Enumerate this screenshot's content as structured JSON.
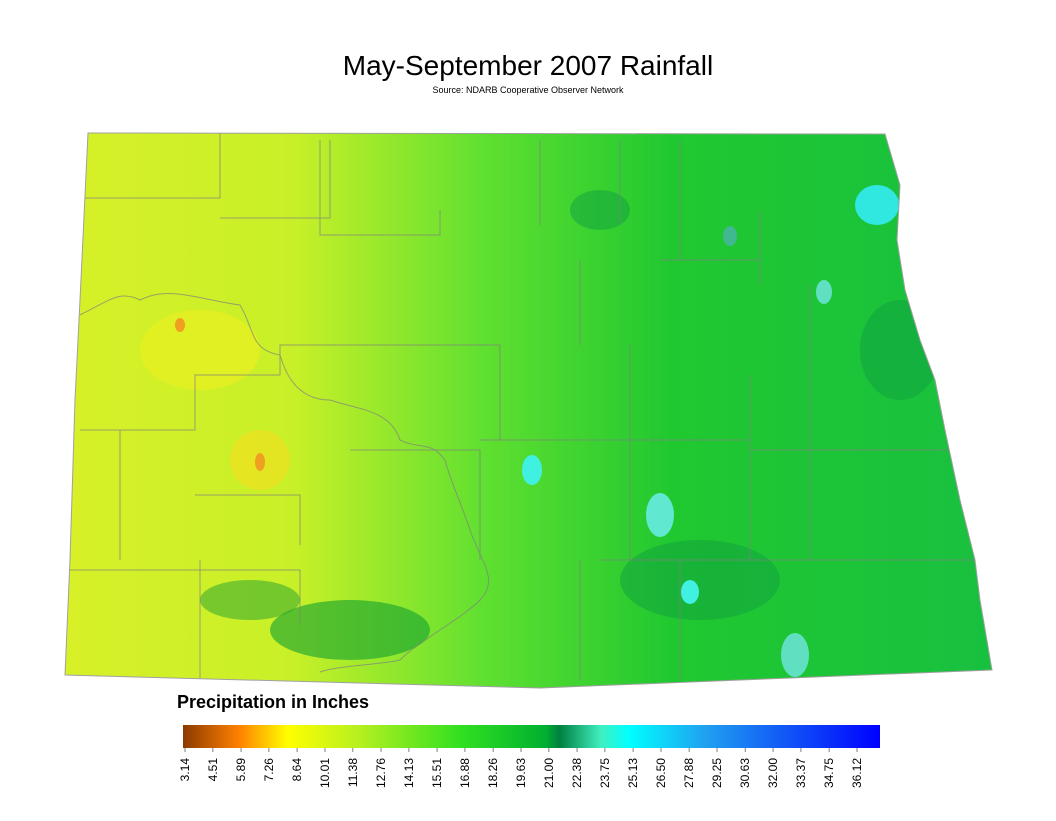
{
  "header": {
    "title": "May-September 2007 Rainfall",
    "source": "Source: NDARB Cooperative Observer Network"
  },
  "legend": {
    "title": "Precipitation in Inches",
    "ticks": [
      3.14,
      4.51,
      5.89,
      7.26,
      8.64,
      10.01,
      11.38,
      12.76,
      14.13,
      15.51,
      16.88,
      18.26,
      19.63,
      {
        "value": 21,
        "label": "21.00"
      },
      22.38,
      23.75,
      25.13,
      {
        "value": 26.5,
        "label": "26.50"
      },
      27.88,
      29.25,
      30.63,
      {
        "value": 32,
        "label": "32.00"
      },
      33.37,
      34.75,
      36.12
    ]
  }
}
